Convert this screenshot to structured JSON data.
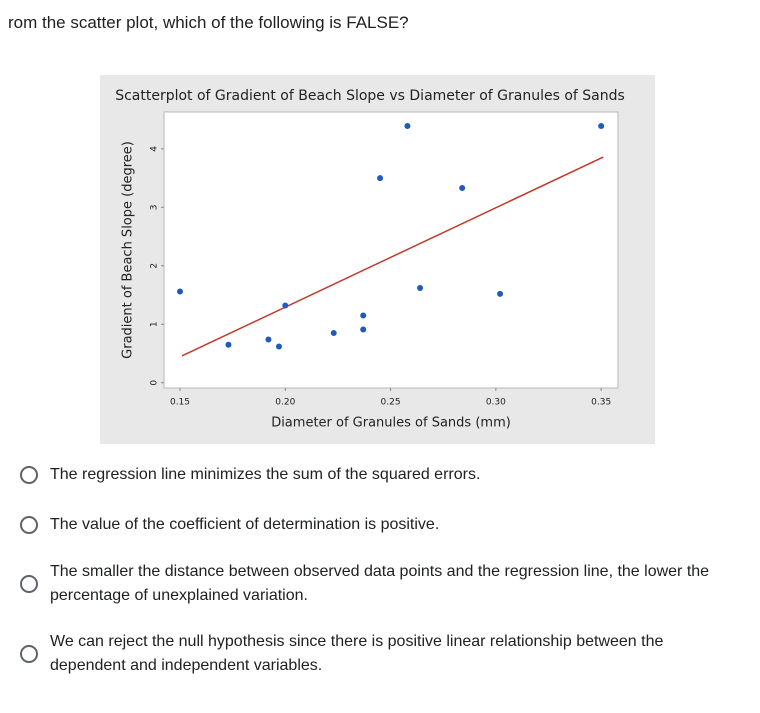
{
  "question": "rom the scatter plot, which of the following is FALSE?",
  "chart_data": {
    "type": "scatter",
    "title": "Scatterplot of Gradient of Beach Slope vs Diameter of Granules of Sands",
    "x_label": "Diameter of Granules of Sands (mm)",
    "y_label": "Gradient of Beach Slope (degree)",
    "x": [
      0.15,
      0.173,
      0.192,
      0.197,
      0.2,
      0.223,
      0.237,
      0.237,
      0.245,
      0.258,
      0.264,
      0.284,
      0.302,
      0.35
    ],
    "values": [
      1.56,
      0.65,
      0.74,
      0.62,
      1.32,
      0.85,
      1.15,
      0.91,
      3.5,
      4.39,
      1.62,
      3.33,
      1.52,
      4.39
    ],
    "color": "#1f5bbf",
    "regression_line": {
      "x": [
        0.151,
        0.351
      ],
      "y": [
        0.46,
        3.86
      ],
      "color": "#c0392b"
    },
    "xlim": [
      0.1424,
      0.358
    ],
    "ylim": [
      -0.09,
      4.63
    ],
    "xticks": [
      0.15,
      {
        "value": 0.2,
        "label": "0.20"
      },
      0.25,
      {
        "value": 0.3,
        "label": "0.30"
      },
      0.35
    ],
    "yticks": [
      0,
      1,
      2,
      3,
      4
    ]
  },
  "options": [
    "The regression line minimizes the sum of the squared errors.",
    "The value of the coefficient of determination is positive.",
    "The smaller the distance between observed data points and the regression line, the lower the percentage of unexplained variation.",
    "We can reject the null hypothesis since there is positive linear relationship between the dependent and independent variables."
  ]
}
